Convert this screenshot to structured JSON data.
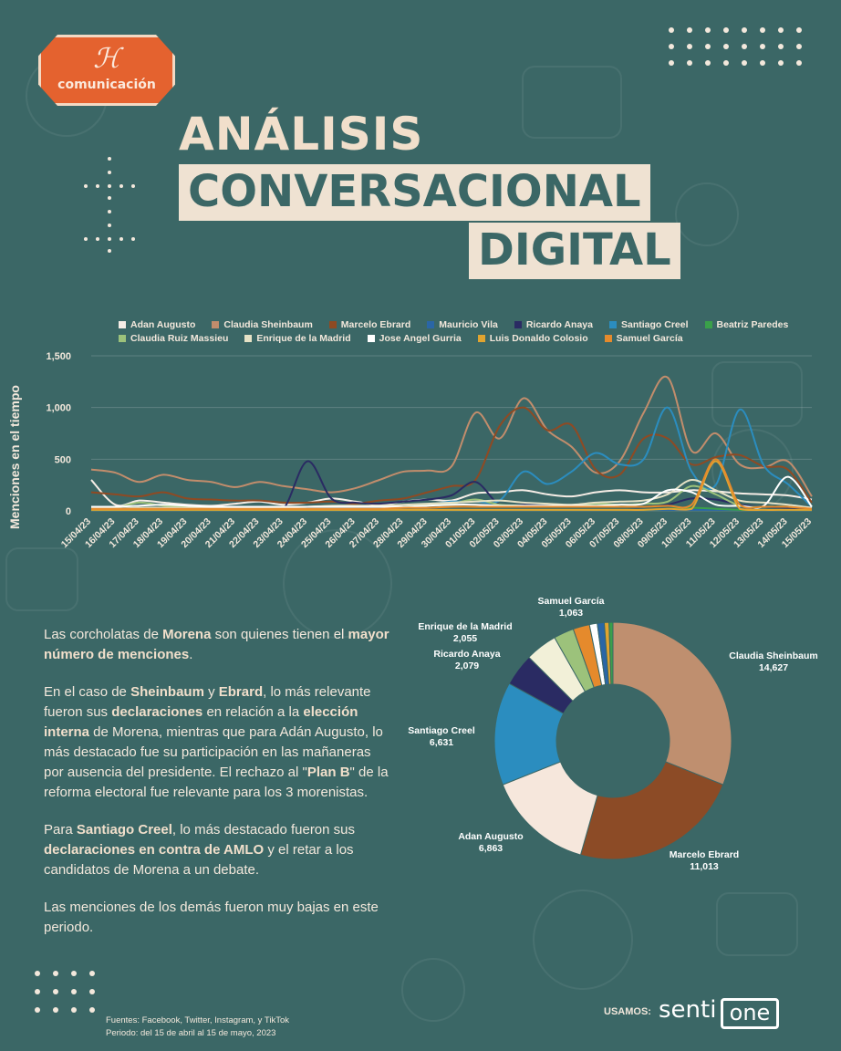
{
  "brand": {
    "logo_mark": "ℋ",
    "logo_text": "comunicación"
  },
  "title": {
    "line1": "ANÁLISIS",
    "line2": "CONVERSACIONAL",
    "line3": "DIGITAL"
  },
  "colors": {
    "background": "#3b6766",
    "cream": "#efe2d2",
    "accent_orange": "#e4622f"
  },
  "chart_data": [
    {
      "type": "line",
      "ylabel": "Menciones en el tiempo",
      "ylim": [
        0,
        1500
      ],
      "yticks": [
        "0",
        "500",
        "1,000",
        "1,500"
      ],
      "grid": true,
      "legend_position": "top",
      "x": [
        "15/04/23",
        "16/04/23",
        "17/04/23",
        "18/04/23",
        "19/04/23",
        "20/04/23",
        "21/04/23",
        "22/04/23",
        "23/04/23",
        "24/04/23",
        "25/04/23",
        "26/04/23",
        "27/04/23",
        "28/04/23",
        "29/04/23",
        "30/04/23",
        "01/05/23",
        "02/05/23",
        "03/05/23",
        "04/05/23",
        "05/05/23",
        "06/05/23",
        "07/05/23",
        "08/05/23",
        "09/05/23",
        "10/05/23",
        "11/05/23",
        "12/05/23",
        "13/05/23",
        "14/05/23",
        "15/05/23"
      ],
      "series": [
        {
          "name": "Adan Augusto",
          "color": "#f6ede6",
          "values": [
            300,
            60,
            100,
            80,
            60,
            50,
            70,
            90,
            60,
            80,
            120,
            90,
            60,
            90,
            110,
            100,
            170,
            180,
            200,
            160,
            140,
            180,
            200,
            180,
            180,
            200,
            190,
            170,
            160,
            150,
            110
          ]
        },
        {
          "name": "Claudia Sheinbaum",
          "color": "#c28d6c",
          "values": [
            400,
            370,
            280,
            350,
            300,
            280,
            230,
            280,
            240,
            210,
            180,
            220,
            300,
            380,
            390,
            430,
            950,
            700,
            1090,
            780,
            620,
            370,
            480,
            950,
            1290,
            580,
            750,
            450,
            420,
            480,
            140
          ]
        },
        {
          "name": "Marcelo Ebrard",
          "color": "#8f4a23",
          "values": [
            180,
            160,
            140,
            180,
            120,
            110,
            100,
            100,
            80,
            80,
            90,
            70,
            100,
            120,
            180,
            240,
            300,
            820,
            1000,
            780,
            830,
            400,
            350,
            700,
            700,
            450,
            520,
            540,
            430,
            400,
            80
          ]
        },
        {
          "name": "Mauricio Vila",
          "color": "#2a66a6",
          "values": [
            10,
            10,
            10,
            10,
            10,
            10,
            10,
            10,
            10,
            10,
            10,
            10,
            10,
            10,
            10,
            10,
            10,
            10,
            10,
            10,
            10,
            10,
            10,
            10,
            10,
            10,
            10,
            10,
            10,
            10,
            10
          ]
        },
        {
          "name": "Ricardo Anaya",
          "color": "#2a2b63",
          "values": [
            20,
            20,
            20,
            20,
            20,
            20,
            20,
            20,
            20,
            480,
            120,
            80,
            70,
            90,
            110,
            150,
            280,
            60,
            60,
            50,
            50,
            40,
            40,
            40,
            60,
            120,
            110,
            60,
            40,
            30,
            20
          ]
        },
        {
          "name": "Santiago Creel",
          "color": "#2b8dbf",
          "values": [
            20,
            20,
            20,
            20,
            20,
            20,
            20,
            20,
            20,
            20,
            20,
            20,
            20,
            30,
            60,
            90,
            90,
            100,
            380,
            260,
            380,
            560,
            450,
            500,
            1000,
            380,
            250,
            980,
            440,
            260,
            40
          ]
        },
        {
          "name": "Beatriz Paredes",
          "color": "#3aa04a",
          "values": [
            10,
            10,
            10,
            10,
            10,
            10,
            10,
            10,
            10,
            10,
            10,
            10,
            10,
            10,
            10,
            10,
            10,
            10,
            10,
            10,
            10,
            10,
            10,
            10,
            20,
            30,
            20,
            10,
            10,
            10,
            10
          ]
        },
        {
          "name": "Claudia Ruiz Massieu",
          "color": "#9cc27b",
          "values": [
            30,
            30,
            80,
            50,
            40,
            40,
            30,
            30,
            30,
            40,
            40,
            40,
            40,
            40,
            60,
            70,
            110,
            60,
            50,
            40,
            50,
            70,
            60,
            70,
            90,
            240,
            160,
            50,
            40,
            40,
            30
          ]
        },
        {
          "name": "Enrique de la Madrid",
          "color": "#e6e2c6",
          "values": [
            20,
            20,
            30,
            30,
            30,
            30,
            30,
            30,
            30,
            40,
            50,
            50,
            50,
            60,
            70,
            80,
            90,
            100,
            80,
            70,
            60,
            80,
            90,
            100,
            160,
            300,
            200,
            100,
            80,
            60,
            30
          ]
        },
        {
          "name": "Jose Angel Gurria",
          "color": "#ffffff",
          "values": [
            40,
            40,
            50,
            60,
            50,
            40,
            40,
            40,
            40,
            40,
            40,
            40,
            40,
            40,
            50,
            60,
            60,
            50,
            50,
            50,
            50,
            50,
            60,
            70,
            200,
            180,
            60,
            50,
            50,
            330,
            40
          ]
        },
        {
          "name": "Luis Donaldo Colosio",
          "color": "#e0a430",
          "values": [
            10,
            10,
            10,
            10,
            10,
            10,
            10,
            10,
            10,
            10,
            10,
            10,
            10,
            10,
            10,
            10,
            10,
            10,
            10,
            10,
            10,
            10,
            10,
            10,
            20,
            20,
            480,
            20,
            10,
            10,
            10
          ]
        },
        {
          "name": "Samuel García",
          "color": "#e58a2c",
          "values": [
            20,
            20,
            20,
            20,
            20,
            20,
            20,
            20,
            20,
            20,
            20,
            20,
            20,
            30,
            30,
            40,
            40,
            40,
            40,
            40,
            40,
            40,
            40,
            40,
            50,
            60,
            500,
            60,
            40,
            40,
            20
          ]
        }
      ]
    },
    {
      "type": "pie",
      "variant": "donut",
      "slices": [
        {
          "name": "Claudia Sheinbaum",
          "value": 14627,
          "label": "14,627",
          "color": "#bf8f6f"
        },
        {
          "name": "Marcelo Ebrard",
          "value": 11013,
          "label": "11,013",
          "color": "#8c4b26"
        },
        {
          "name": "Adan Augusto",
          "value": 6863,
          "label": "6,863",
          "color": "#f6e7dc"
        },
        {
          "name": "Santiago Creel",
          "value": 6631,
          "label": "6,631",
          "color": "#2b8dbf"
        },
        {
          "name": "Ricardo Anaya",
          "value": 2079,
          "label": "2,079",
          "color": "#2a2b63"
        },
        {
          "name": "Enrique de la Madrid",
          "value": 2055,
          "label": "2,055",
          "color": "#f2f0d8"
        },
        {
          "name": "Claudia Ruiz Massieu",
          "value": 1300,
          "label": "",
          "color": "#9cc27b"
        },
        {
          "name": "Samuel García",
          "value": 1063,
          "label": "1,063",
          "color": "#e58a2c"
        },
        {
          "name": "Jose Angel Gurria",
          "value": 500,
          "label": "",
          "color": "#ffffff"
        },
        {
          "name": "Mauricio Vila",
          "value": 450,
          "label": "",
          "color": "#2a66a6"
        },
        {
          "name": "Luis Donaldo Colosio",
          "value": 300,
          "label": "",
          "color": "#e0a430"
        },
        {
          "name": "Beatriz Paredes",
          "value": 250,
          "label": "",
          "color": "#3aa04a"
        }
      ]
    }
  ],
  "body": {
    "p1_a": "Las  corcholatas de ",
    "p1_b": "Morena",
    "p1_c": " son quienes tienen el ",
    "p1_d": "mayor número de menciones",
    "p1_e": ".",
    "p2_a": "En el caso de ",
    "p2_b": "Sheinbaum",
    "p2_c": " y ",
    "p2_d": "Ebrard",
    "p2_e": ", lo más relevante fueron sus ",
    "p2_f": "declaraciones",
    "p2_g": " en relación a la ",
    "p2_h": "elección interna",
    "p2_i": " de Morena, mientras que para Adán Augusto, lo más destacado fue su participación en las mañaneras por ausencia del presidente. El rechazo al \"",
    "p2_j": "Plan B",
    "p2_k": "\" de la reforma electoral fue relevante para los 3 morenistas.",
    "p3_a": "Para ",
    "p3_b": "Santiago Creel",
    "p3_c": ", lo más destacado fueron sus ",
    "p3_d": "declaraciones en contra de AMLO",
    "p3_e": " y el retar a los candidatos de Morena a un debate.",
    "p4": "Las menciones de los demás fueron muy bajas en este periodo."
  },
  "footer": {
    "sources": "Fuentes:  Facebook, Twitter, Instagram, y TikTok",
    "period": "Periodo: del 15 de abril al 15 de mayo, 2023",
    "usamos": "USAMOS:",
    "brand_a": "senti",
    "brand_b": "one"
  }
}
